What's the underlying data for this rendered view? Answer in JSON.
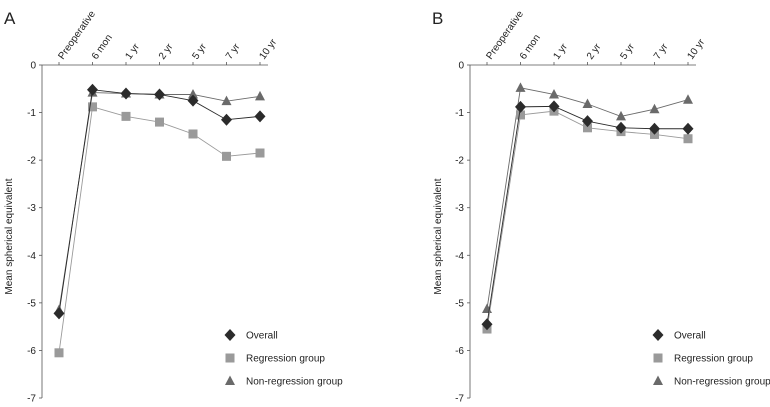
{
  "colors": {
    "Overall": "#2b2b2b",
    "Regression group": "#9a9a9a",
    "Non-regression group": "#6a6a6a",
    "axis": "#555555"
  },
  "chart_data": [
    {
      "panel": "A",
      "type": "line",
      "categories": [
        "Preoperative",
        "6 mon",
        "1 yr",
        "2 yr",
        "5 yr",
        "7 yr",
        "10 yr"
      ],
      "ylabel": "Mean spherical equivalent",
      "xlabel": "",
      "ylim": [
        -7,
        0
      ],
      "yticks": [
        0,
        -1,
        -2,
        -3,
        -4,
        -5,
        -6,
        -7
      ],
      "x_axis_position": "top",
      "legend_position": "bottom-right",
      "grid": false,
      "series": [
        {
          "name": "Overall",
          "marker": "diamond",
          "values": [
            -5.22,
            -0.52,
            -0.6,
            -0.62,
            -0.75,
            -1.15,
            -1.08
          ]
        },
        {
          "name": "Regression group",
          "marker": "square",
          "values": [
            -6.05,
            -0.88,
            -1.08,
            -1.2,
            -1.45,
            -1.92,
            -1.85
          ]
        },
        {
          "name": "Non-regression group",
          "marker": "triangle",
          "values": [
            -5.15,
            -0.58,
            -0.6,
            -0.62,
            -0.62,
            -0.76,
            -0.66
          ]
        }
      ]
    },
    {
      "panel": "B",
      "type": "line",
      "categories": [
        "Preoperative",
        "6 mon",
        "1 yr",
        "2 yr",
        "5 yr",
        "7 yr",
        "10 yr"
      ],
      "ylabel": "Mean spherical equivalent",
      "xlabel": "",
      "ylim": [
        -7,
        0
      ],
      "yticks": [
        0,
        -1,
        -2,
        -3,
        -4,
        -5,
        -6,
        -7
      ],
      "x_axis_position": "top",
      "legend_position": "bottom-right",
      "grid": false,
      "series": [
        {
          "name": "Overall",
          "marker": "diamond",
          "values": [
            -5.45,
            -0.88,
            -0.87,
            -1.18,
            -1.32,
            -1.34,
            -1.34
          ]
        },
        {
          "name": "Regression group",
          "marker": "square",
          "values": [
            -5.55,
            -1.05,
            -0.97,
            -1.32,
            -1.4,
            -1.46,
            -1.55
          ]
        },
        {
          "name": "Non-regression group",
          "marker": "triangle",
          "values": [
            -5.13,
            -0.48,
            -0.62,
            -0.82,
            -1.08,
            -0.93,
            -0.73
          ]
        }
      ]
    }
  ]
}
